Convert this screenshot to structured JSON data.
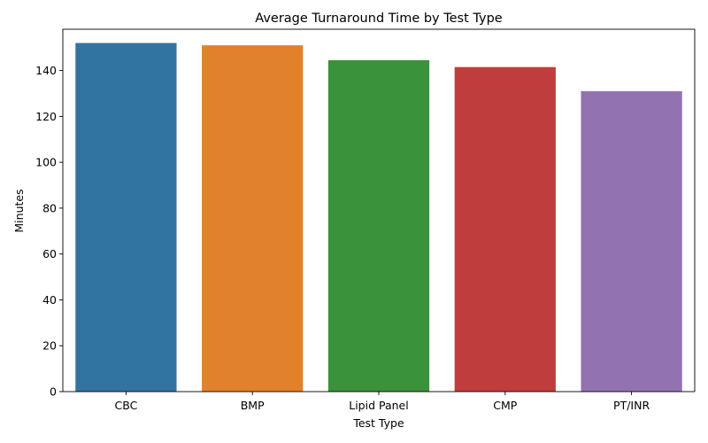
{
  "chart_data": {
    "type": "bar",
    "title": "Average Turnaround Time by Test Type",
    "xlabel": "Test Type",
    "ylabel": "Minutes",
    "categories": [
      "CBC",
      "BMP",
      "Lipid Panel",
      "CMP",
      "PT/INR"
    ],
    "values": [
      152,
      151,
      144.5,
      141.5,
      131
    ],
    "colors": [
      "#3274a1",
      "#e1812c",
      "#3a923a",
      "#c03d3e",
      "#9372b2"
    ],
    "ylim": [
      0,
      158
    ],
    "yticks": [
      0,
      20,
      40,
      60,
      80,
      100,
      120,
      140
    ],
    "grid": false,
    "legend": "none"
  }
}
